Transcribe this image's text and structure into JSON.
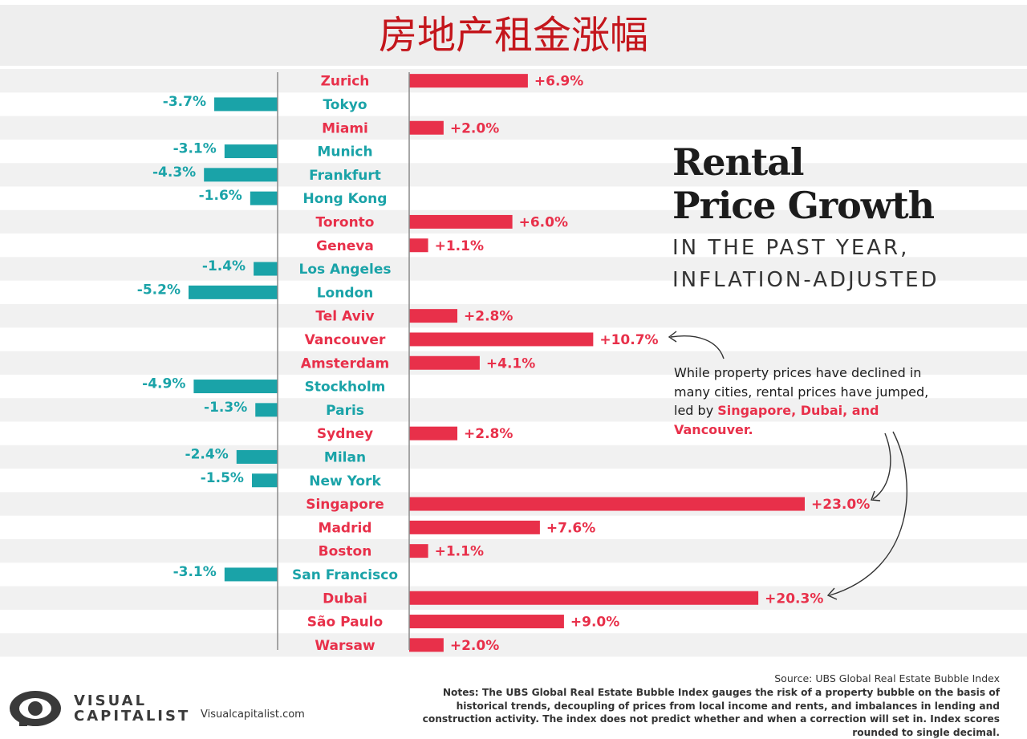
{
  "page": {
    "title": "房地产租金涨幅",
    "title_color": "#c4161c"
  },
  "chart_data": {
    "type": "bar",
    "orientation": "horizontal",
    "title": "Rental Price Growth",
    "subtitle": "IN THE PAST YEAR, INFLATION-ADJUSTED",
    "title_lines": [
      "Rental",
      "Price Growth"
    ],
    "subtitle_lines": [
      "IN THE PAST YEAR,",
      "INFLATION-ADJUSTED"
    ],
    "xlabel": "",
    "ylabel": "",
    "unit": "%",
    "xlim": [
      -5.2,
      23.0
    ],
    "positive_color": "#e8304a",
    "negative_color": "#1aa3a8",
    "grid": false,
    "legend": "none",
    "categories": [
      "Zurich",
      "Tokyo",
      "Miami",
      "Munich",
      "Frankfurt",
      "Hong Kong",
      "Toronto",
      "Geneva",
      "Los Angeles",
      "London",
      "Tel Aviv",
      "Vancouver",
      "Amsterdam",
      "Stockholm",
      "Paris",
      "Sydney",
      "Milan",
      "New York",
      "Singapore",
      "Madrid",
      "Boston",
      "San Francisco",
      "Dubai",
      "São Paulo",
      "Warsaw"
    ],
    "values": [
      6.9,
      -3.7,
      2.0,
      -3.1,
      -4.3,
      -1.6,
      6.0,
      1.1,
      -1.4,
      -5.2,
      2.8,
      10.7,
      4.1,
      -4.9,
      -1.3,
      2.8,
      -2.4,
      -1.5,
      23.0,
      7.6,
      1.1,
      -3.1,
      20.3,
      9.0,
      2.0
    ],
    "data_labels": [
      "+6.9%",
      "-3.7%",
      "+2.0%",
      "-3.1%",
      "-4.3%",
      "-1.6%",
      "+6.0%",
      "+1.1%",
      "-1.4%",
      "-5.2%",
      "+2.8%",
      "+10.7%",
      "+4.1%",
      "-4.9%",
      "-1.3%",
      "+2.8%",
      "-2.4%",
      "-1.5%",
      "+23.0%",
      "+7.6%",
      "+1.1%",
      "-3.1%",
      "+20.3%",
      "+9.0%",
      "+2.0%"
    ]
  },
  "annotation": {
    "text_prefix": "While property prices have declined in many cities, rental prices have jumped, led by ",
    "highlight": "Singapore, Dubai, and Vancouver."
  },
  "footer": {
    "logo_line1": "VISUAL",
    "logo_line2": "CAPITALIST",
    "site": "Visualcapitalist.com",
    "source": "Source: UBS Global Real Estate Bubble Index",
    "notes": "Notes: The UBS Global Real Estate Bubble Index gauges the risk of a property bubble on the basis of historical trends, decoupling of prices from local income and rents, and imbalances in lending and construction activity. The index does not predict whether and when a correction will set in. Index scores rounded to single decimal."
  }
}
